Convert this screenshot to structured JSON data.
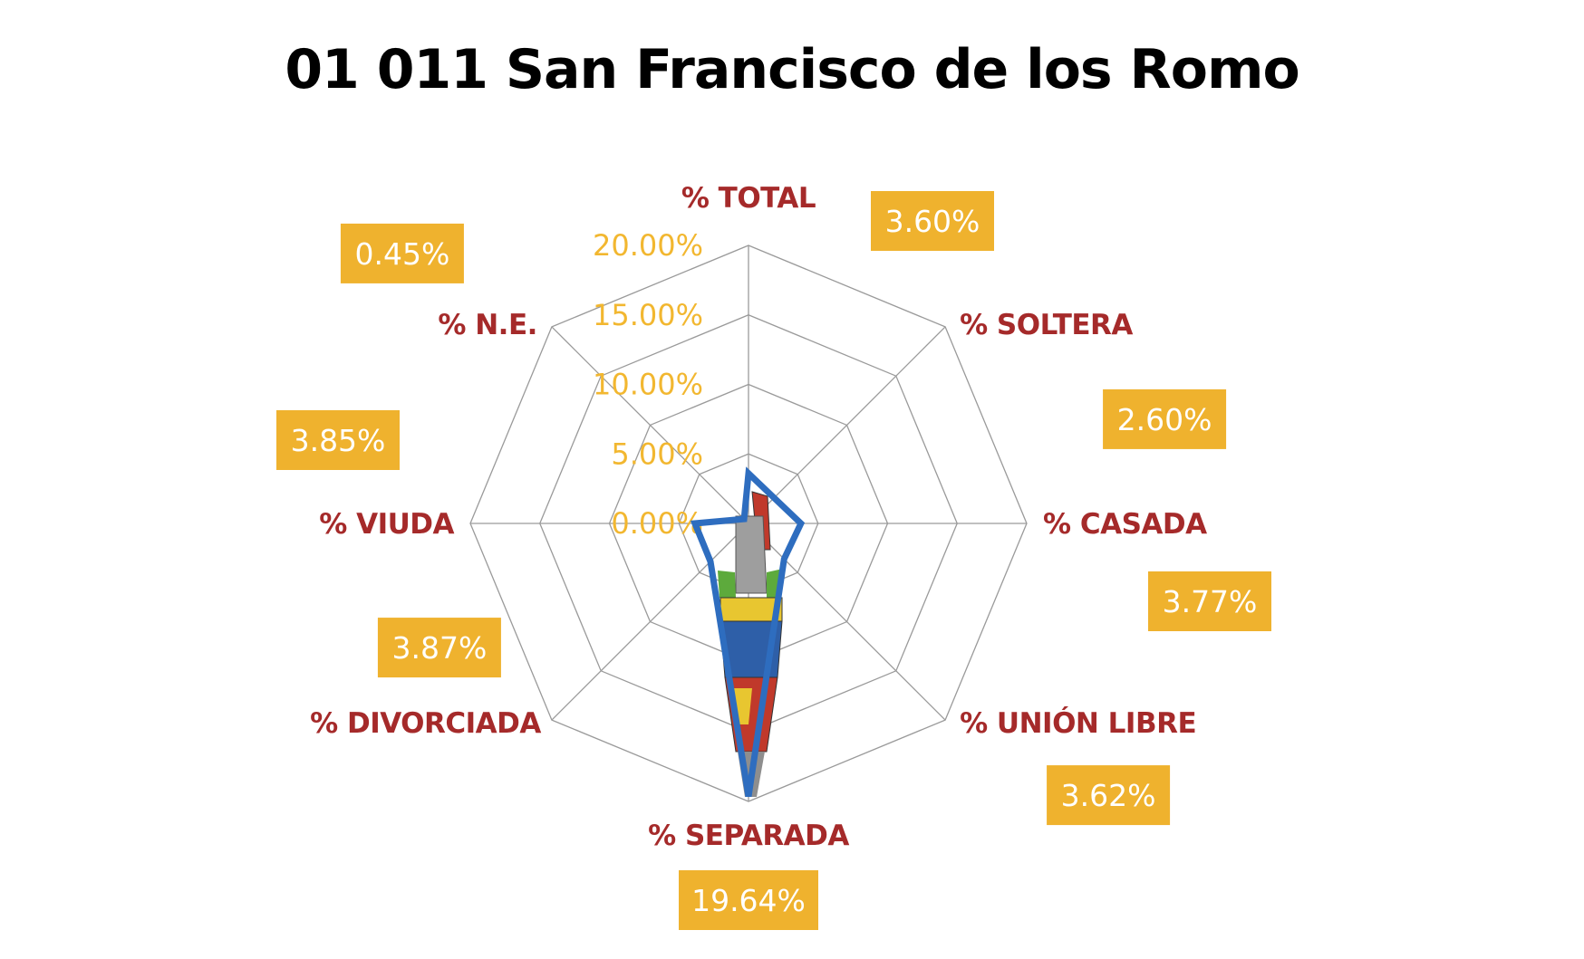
{
  "chart_data": {
    "type": "radar",
    "title": "01 011 San Francisco de los Romo",
    "axes": [
      "% TOTAL",
      "% SOLTERA",
      "% CASADA",
      "% UNIÓN LIBRE",
      "% SEPARADA",
      "% DIVORCIADA",
      "% VIUDA",
      "% N.E."
    ],
    "values": [
      3.6,
      2.6,
      3.77,
      3.62,
      19.64,
      3.87,
      3.85,
      0.45
    ],
    "value_labels": [
      "3.60%",
      "2.60%",
      "3.77%",
      "3.62%",
      "19.64%",
      "3.87%",
      "3.85%",
      "0.45%"
    ],
    "tick_labels": [
      "0.00%",
      "5.00%",
      "10.00%",
      "15.00%",
      "20.00%"
    ],
    "range": [
      0,
      20
    ],
    "grid": true,
    "legend": "none",
    "colors": {
      "series_line": "#2E6DBF",
      "axis_label": "#A52A2A",
      "tick_label": "#F2B730",
      "value_box": "#EFB22E",
      "value_text": "#FFFFFF",
      "grid": "#9A9A9A"
    }
  }
}
